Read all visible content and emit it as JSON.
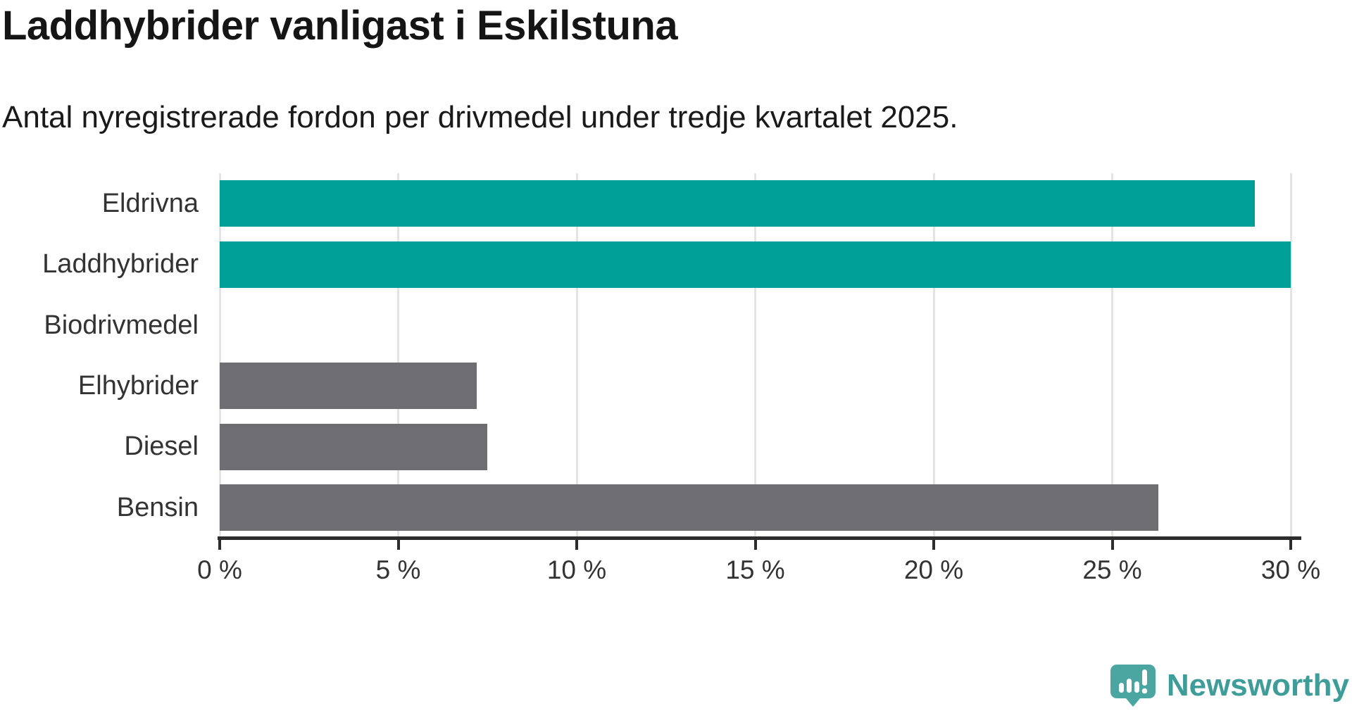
{
  "title": "Laddhybrider vanligast i Eskilstuna",
  "subtitle": "Antal nyregistrerade fordon per drivmedel under tredje kvartalet 2025.",
  "chart_data": {
    "type": "bar",
    "orientation": "horizontal",
    "title": "Laddhybrider vanligast i Eskilstuna",
    "subtitle": "Antal nyregistrerade fordon per drivmedel under tredje kvartalet 2025.",
    "categories": [
      "Eldrivna",
      "Laddhybrider",
      "Biodrivmedel",
      "Elhybrider",
      "Diesel",
      "Bensin"
    ],
    "values": [
      29.0,
      30.0,
      0.0,
      7.2,
      7.5,
      26.3
    ],
    "unit": "%",
    "xlim": [
      0,
      30
    ],
    "x_ticks": [
      "0 %",
      "5 %",
      "10 %",
      "15 %",
      "20 %",
      "25 %",
      "30 %"
    ],
    "grid": "vertical",
    "legend": "none",
    "bar_colors": [
      "#00a099",
      "#00a099",
      "#6d6d72",
      "#6d6d72",
      "#6d6d72",
      "#6d6d72"
    ],
    "highlight_color": "#00a099",
    "default_color": "#6d6d72",
    "gridline_color": "#e4e4e4",
    "axis_color": "#2d2d2d"
  },
  "branding": {
    "logo_text": "Newsworthy",
    "logo_color": "#3f9d99",
    "icon": "newsworthy-speech-bubble-bar-chart-icon",
    "icon_color": "#4ba5a1"
  }
}
